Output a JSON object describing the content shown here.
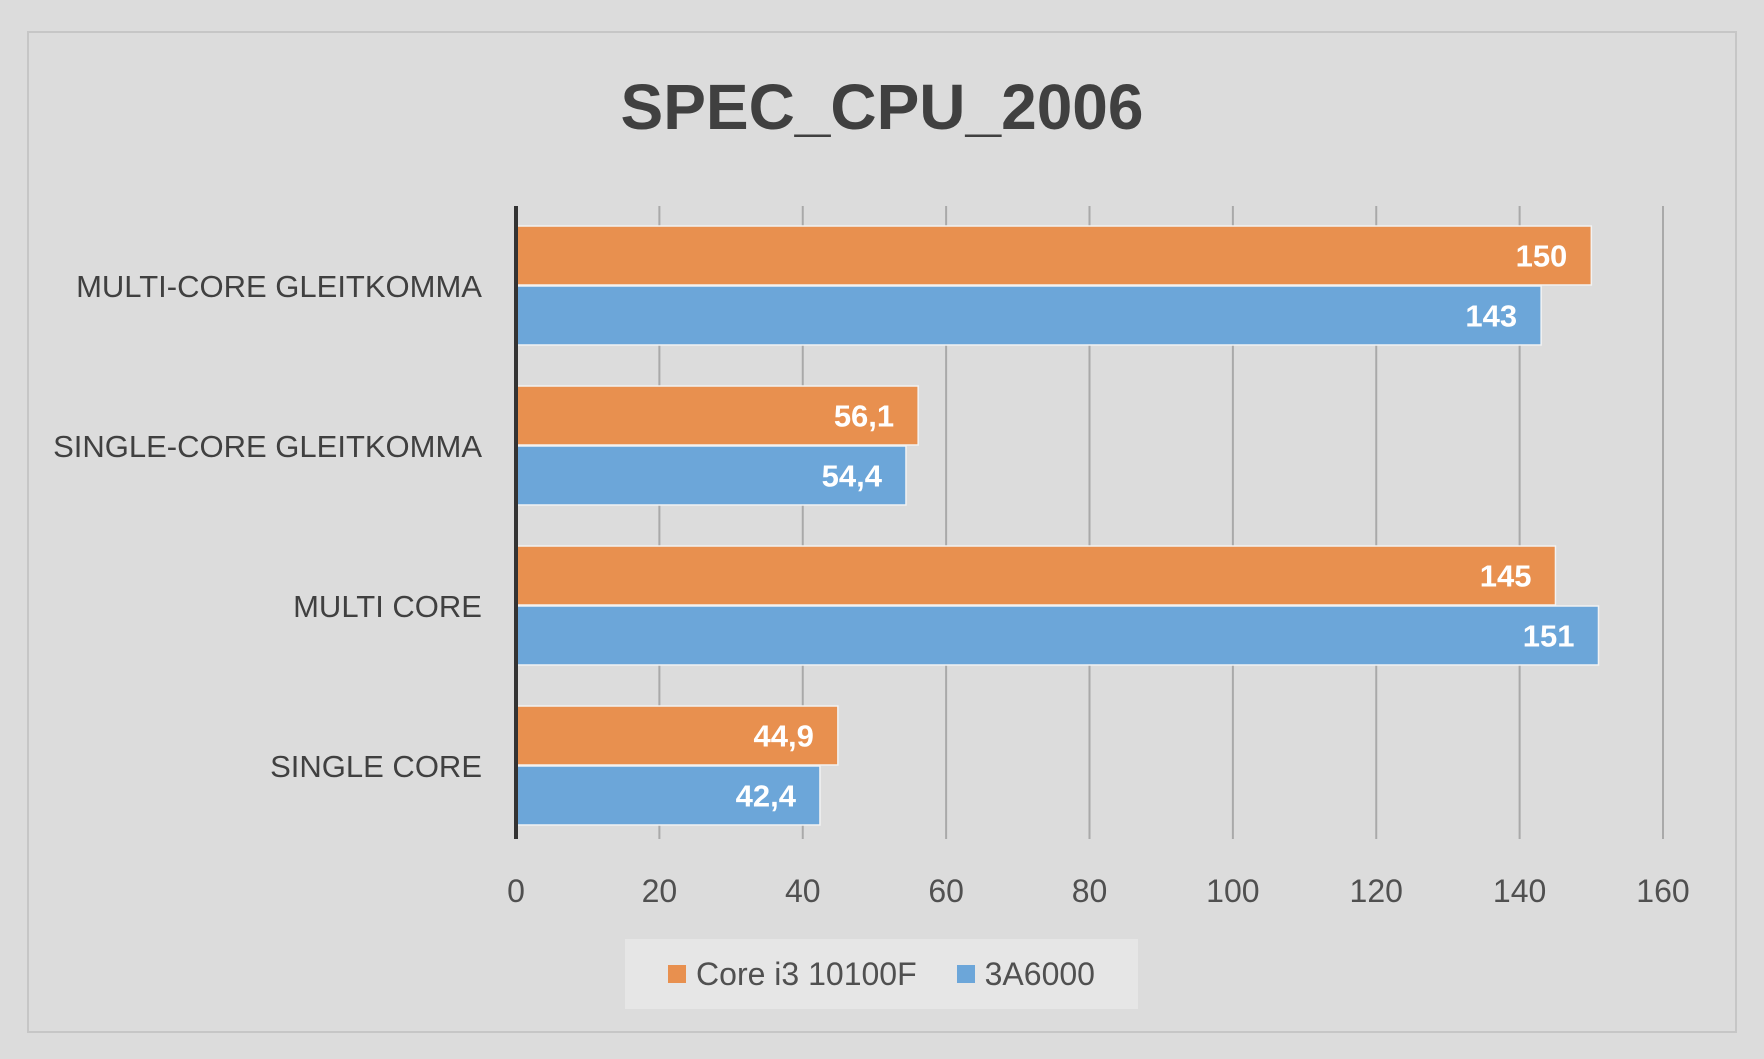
{
  "chart_data": {
    "type": "bar",
    "orientation": "horizontal",
    "title": "SPEC_CPU_2006",
    "categories": [
      "MULTI-CORE GLEITKOMMA",
      "SINGLE-CORE GLEITKOMMA",
      "MULTI CORE",
      "SINGLE CORE"
    ],
    "series": [
      {
        "name": "Core i3 10100F",
        "color": "#e8904f",
        "values": [
          150,
          56.1,
          145,
          44.9
        ],
        "labels": [
          "150",
          "56,1",
          "145",
          "44,9"
        ]
      },
      {
        "name": "3A6000",
        "color": "#6ca6d9",
        "values": [
          143,
          54.4,
          151,
          42.4
        ],
        "labels": [
          "143",
          "54,4",
          "151",
          "42,4"
        ]
      }
    ],
    "xlim": [
      0,
      160
    ],
    "xticks": [
      0,
      20,
      40,
      60,
      80,
      100,
      120,
      140,
      160
    ],
    "grid": true,
    "legend": "bottom"
  }
}
